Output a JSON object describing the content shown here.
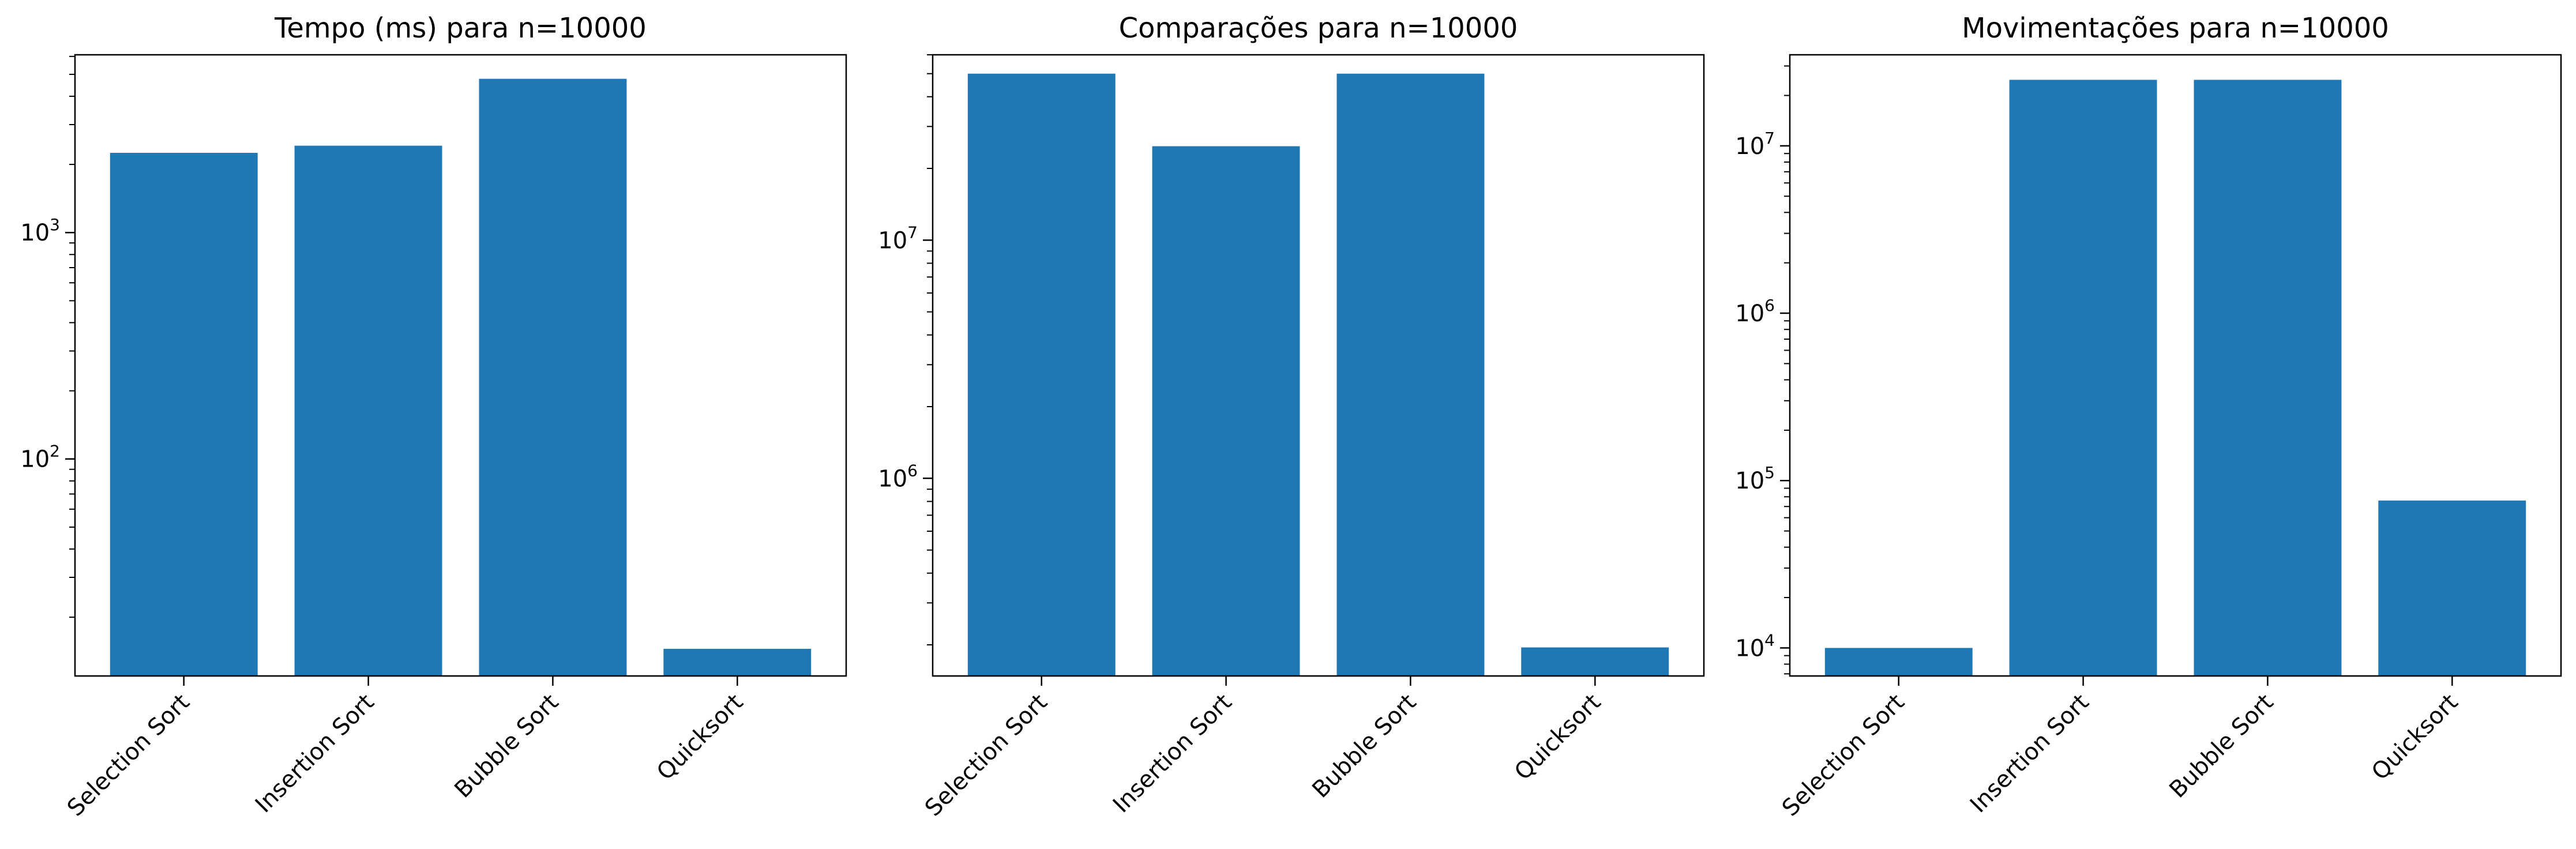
{
  "chart_data": [
    {
      "type": "bar",
      "title": "Tempo (ms) para n=10000",
      "xlabel": "",
      "ylabel": "",
      "yscale": "log",
      "ylim": [
        11,
        6100
      ],
      "grid": false,
      "legend": "none",
      "categories": [
        "Selection Sort",
        "Insertion Sort",
        "Bubble Sort",
        "Quicksort"
      ],
      "values": [
        2250,
        2420,
        4780,
        14.5
      ],
      "ytick_labels": [
        {
          "value": 100,
          "base": "10",
          "exp": "2"
        },
        {
          "value": 1000,
          "base": "10",
          "exp": "3"
        }
      ]
    },
    {
      "type": "bar",
      "title": "Comparações para n=10000",
      "xlabel": "",
      "ylabel": "",
      "yscale": "log",
      "ylim": [
        148000,
        60000000
      ],
      "grid": false,
      "legend": "none",
      "categories": [
        "Selection Sort",
        "Insertion Sort",
        "Bubble Sort",
        "Quicksort"
      ],
      "values": [
        49995000,
        24800000,
        49995000,
        195000
      ],
      "ytick_labels": [
        {
          "value": 1000000,
          "base": "10",
          "exp": "6"
        },
        {
          "value": 10000000,
          "base": "10",
          "exp": "7"
        }
      ]
    },
    {
      "type": "bar",
      "title": "Movimentações para n=10000",
      "xlabel": "",
      "ylabel": "",
      "yscale": "log",
      "ylim": [
        6800,
        35000000
      ],
      "grid": false,
      "legend": "none",
      "categories": [
        "Selection Sort",
        "Insertion Sort",
        "Bubble Sort",
        "Quicksort"
      ],
      "values": [
        9999,
        24800000,
        24800000,
        76000
      ],
      "ytick_labels": [
        {
          "value": 10000,
          "base": "10",
          "exp": "4"
        },
        {
          "value": 100000,
          "base": "10",
          "exp": "5"
        },
        {
          "value": 1000000,
          "base": "10",
          "exp": "6"
        },
        {
          "value": 10000000,
          "base": "10",
          "exp": "7"
        }
      ]
    }
  ],
  "colors": {
    "bar": "#1f77b4",
    "axes": "#000000",
    "background": "#ffffff"
  }
}
